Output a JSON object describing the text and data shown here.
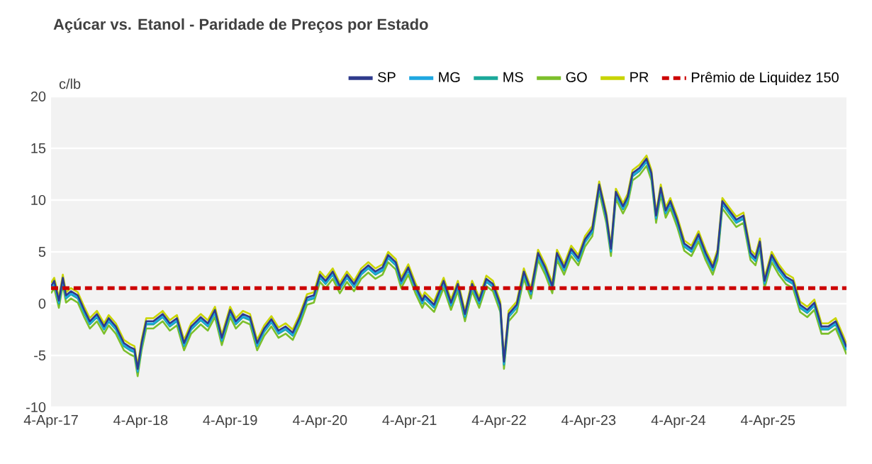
{
  "chart_data": {
    "type": "line",
    "title": "**Açúcar vs. Etanol - Paridade de Preços por Estado**",
    "ylabel": "c/lb",
    "x": [
      "2017-04-04",
      "2017-04-17",
      "2017-05-06",
      "2017-05-22",
      "2017-06-04",
      "2017-06-24",
      "2017-07-22",
      "2017-08-17",
      "2017-09-09",
      "2017-10-08",
      "2017-11-06",
      "2017-11-25",
      "2017-12-24",
      "2018-01-26",
      "2018-02-20",
      "2018-03-10",
      "2018-03-23",
      "2018-04-08",
      "2018-04-27",
      "2018-05-26",
      "2018-07-03",
      "2018-08-01",
      "2018-08-30",
      "2018-09-28",
      "2018-10-27",
      "2018-12-05",
      "2019-01-03",
      "2019-02-01",
      "2019-03-01",
      "2019-04-04",
      "2019-04-27",
      "2019-05-26",
      "2019-06-24",
      "2019-07-23",
      "2019-08-21",
      "2019-09-19",
      "2019-10-18",
      "2019-11-16",
      "2019-12-15",
      "2020-01-13",
      "2020-02-11",
      "2020-03-10",
      "2020-04-04",
      "2020-04-27",
      "2020-05-26",
      "2020-06-24",
      "2020-07-23",
      "2020-08-21",
      "2020-09-19",
      "2020-10-18",
      "2020-11-16",
      "2020-12-15",
      "2021-01-07",
      "2021-02-07",
      "2021-03-01",
      "2021-03-30",
      "2021-04-28",
      "2021-05-26",
      "2021-06-05",
      "2021-07-13",
      "2021-08-21",
      "2021-09-20",
      "2021-10-18",
      "2021-11-16",
      "2021-12-15",
      "2022-01-13",
      "2022-02-11",
      "2022-03-10",
      "2022-04-09",
      "2022-04-24",
      "2022-05-13",
      "2022-06-15",
      "2022-07-14",
      "2022-08-12",
      "2022-09-10",
      "2022-10-09",
      "2022-11-07",
      "2022-11-26",
      "2022-12-25",
      "2023-01-23",
      "2023-02-21",
      "2023-03-20",
      "2023-04-19",
      "2023-05-17",
      "2023-06-15",
      "2023-07-04",
      "2023-07-24",
      "2023-08-22",
      "2023-09-10",
      "2023-09-30",
      "2023-10-28",
      "2023-11-26",
      "2023-12-16",
      "2024-01-04",
      "2024-01-23",
      "2024-02-12",
      "2024-03-02",
      "2024-03-30",
      "2024-04-28",
      "2024-05-27",
      "2024-06-25",
      "2024-07-24",
      "2024-08-22",
      "2024-09-10",
      "2024-09-30",
      "2024-10-28",
      "2024-11-26",
      "2024-12-25",
      "2025-01-23",
      "2025-02-12",
      "2025-03-02",
      "2025-03-21",
      "2025-04-19",
      "2025-05-18",
      "2025-06-16",
      "2025-07-15",
      "2025-08-13",
      "2025-09-11",
      "2025-10-10",
      "2025-11-08",
      "2025-12-06",
      "2026-01-05",
      "2026-02-03",
      "2026-02-18"
    ],
    "series": [
      {
        "name": "SP",
        "color": "#2e3a8c",
        "values": [
          1.7,
          2.2,
          0.3,
          2.5,
          0.8,
          1.2,
          0.8,
          -0.6,
          -1.7,
          -1.0,
          -2.2,
          -1.4,
          -2.2,
          -3.8,
          -4.2,
          -4.4,
          -6.3,
          -3.8,
          -1.7,
          -1.7,
          -1.0,
          -1.9,
          -1.4,
          -3.8,
          -2.2,
          -1.3,
          -1.9,
          -0.6,
          -3.3,
          -0.6,
          -1.7,
          -1.0,
          -1.3,
          -3.8,
          -2.4,
          -1.5,
          -2.6,
          -2.2,
          -2.8,
          -1.3,
          0.6,
          0.8,
          2.8,
          2.2,
          3.1,
          1.7,
          2.8,
          1.9,
          3.1,
          3.7,
          3.1,
          3.5,
          4.7,
          4.0,
          2.2,
          3.5,
          1.7,
          0.3,
          0.8,
          -0.1,
          2.2,
          0.1,
          1.9,
          -1.0,
          1.9,
          0.3,
          2.4,
          1.9,
          -0.1,
          -5.6,
          -1.0,
          -0.1,
          3.1,
          1.2,
          4.9,
          3.5,
          1.7,
          4.9,
          3.5,
          5.3,
          4.4,
          6.2,
          7.2,
          11.5,
          8.5,
          5.3,
          10.8,
          9.4,
          10.3,
          12.6,
          13.1,
          14.0,
          12.6,
          8.5,
          11.2,
          9.0,
          9.9,
          8.1,
          5.8,
          5.3,
          6.7,
          4.9,
          3.5,
          4.9,
          9.9,
          9.0,
          8.1,
          8.5,
          4.9,
          4.4,
          6.0,
          2.2,
          4.7,
          3.5,
          2.6,
          2.2,
          -0.1,
          -0.6,
          0.1,
          -2.2,
          -2.2,
          -1.7,
          -3.3,
          -4.2
        ]
      },
      {
        "name": "MG",
        "color": "#1ea7e1",
        "values": [
          1.5,
          2.0,
          0.1,
          2.3,
          0.6,
          1.0,
          0.6,
          -0.8,
          -1.9,
          -1.2,
          -2.4,
          -1.6,
          -2.4,
          -4.0,
          -4.4,
          -4.6,
          -6.5,
          -4.0,
          -1.9,
          -1.9,
          -1.2,
          -2.1,
          -1.6,
          -4.0,
          -2.4,
          -1.5,
          -2.1,
          -0.8,
          -3.5,
          -0.8,
          -1.9,
          -1.2,
          -1.5,
          -4.0,
          -2.6,
          -1.7,
          -2.8,
          -2.4,
          -3.0,
          -1.5,
          0.4,
          0.6,
          2.6,
          2.0,
          2.9,
          1.5,
          2.6,
          1.7,
          2.9,
          3.5,
          2.9,
          3.3,
          4.5,
          3.8,
          2.0,
          3.3,
          1.5,
          0.1,
          0.6,
          -0.3,
          2.0,
          -0.1,
          1.7,
          -1.2,
          1.7,
          0.1,
          2.2,
          1.7,
          -0.3,
          -5.8,
          -1.2,
          -0.3,
          2.9,
          1.0,
          4.7,
          3.3,
          1.5,
          4.7,
          3.3,
          5.1,
          4.2,
          6.0,
          7.0,
          11.3,
          8.3,
          5.1,
          10.6,
          9.2,
          10.1,
          12.4,
          12.9,
          13.8,
          12.4,
          8.3,
          11.0,
          8.8,
          9.7,
          7.9,
          5.6,
          5.1,
          6.5,
          4.7,
          3.3,
          4.7,
          9.7,
          8.8,
          7.9,
          8.3,
          4.7,
          4.2,
          5.8,
          2.0,
          4.5,
          3.3,
          2.4,
          2.0,
          -0.3,
          -0.8,
          -0.1,
          -2.4,
          -2.4,
          -1.9,
          -3.5,
          -4.4
        ]
      },
      {
        "name": "MS",
        "color": "#1aa89a",
        "values": [
          1.4,
          1.9,
          0.0,
          2.2,
          0.5,
          0.9,
          0.5,
          -0.9,
          -2.0,
          -1.3,
          -2.5,
          -1.7,
          -2.5,
          -4.1,
          -4.5,
          -4.7,
          -6.6,
          -4.1,
          -2.0,
          -2.0,
          -1.3,
          -2.2,
          -1.7,
          -4.1,
          -2.5,
          -1.6,
          -2.2,
          -0.9,
          -3.6,
          -0.9,
          -2.0,
          -1.3,
          -1.6,
          -4.1,
          -2.7,
          -1.8,
          -2.9,
          -2.5,
          -3.1,
          -1.6,
          0.3,
          0.5,
          2.5,
          1.9,
          2.8,
          1.4,
          2.5,
          1.6,
          2.8,
          3.4,
          2.8,
          3.2,
          4.4,
          3.7,
          1.9,
          3.2,
          1.4,
          0.0,
          0.5,
          -0.4,
          1.9,
          -0.2,
          1.6,
          -1.3,
          1.6,
          0.0,
          2.1,
          1.6,
          -0.4,
          -5.9,
          -1.3,
          -0.4,
          2.8,
          0.9,
          4.6,
          3.2,
          1.4,
          4.6,
          3.2,
          5.0,
          4.1,
          5.9,
          6.9,
          11.2,
          8.2,
          5.0,
          10.5,
          9.1,
          10.0,
          12.3,
          12.8,
          13.7,
          12.3,
          8.2,
          10.9,
          8.7,
          9.6,
          7.8,
          5.5,
          5.0,
          6.4,
          4.6,
          3.2,
          4.6,
          9.6,
          8.7,
          7.8,
          8.2,
          4.6,
          4.1,
          5.7,
          1.9,
          4.4,
          3.2,
          2.3,
          1.9,
          -0.4,
          -0.9,
          -0.2,
          -2.5,
          -2.5,
          -2.0,
          -3.6,
          -4.5
        ]
      },
      {
        "name": "GO",
        "color": "#7cbf2a",
        "values": [
          1.0,
          1.5,
          -0.4,
          1.8,
          0.1,
          0.5,
          0.1,
          -1.3,
          -2.4,
          -1.7,
          -2.9,
          -2.1,
          -2.9,
          -4.5,
          -4.9,
          -5.1,
          -7.0,
          -4.5,
          -2.4,
          -2.4,
          -1.7,
          -2.6,
          -2.1,
          -4.5,
          -2.9,
          -2.0,
          -2.6,
          -1.3,
          -4.0,
          -1.3,
          -2.4,
          -1.7,
          -2.0,
          -4.5,
          -3.1,
          -2.2,
          -3.3,
          -2.9,
          -3.5,
          -2.0,
          -0.1,
          0.1,
          2.1,
          1.5,
          2.4,
          1.0,
          2.1,
          1.2,
          2.4,
          3.0,
          2.4,
          2.8,
          4.0,
          3.3,
          1.5,
          2.8,
          1.0,
          -0.4,
          0.1,
          -0.8,
          1.5,
          -0.6,
          1.2,
          -1.7,
          1.2,
          -0.4,
          1.7,
          1.2,
          -0.8,
          -6.3,
          -1.7,
          -0.8,
          2.4,
          0.5,
          4.2,
          2.8,
          1.0,
          4.2,
          2.8,
          4.6,
          3.7,
          5.5,
          6.5,
          10.8,
          7.8,
          4.6,
          10.1,
          8.7,
          9.6,
          11.9,
          12.4,
          13.3,
          11.9,
          7.8,
          10.5,
          8.3,
          9.2,
          7.4,
          5.1,
          4.6,
          6.0,
          4.2,
          2.8,
          4.2,
          9.2,
          8.3,
          7.4,
          7.8,
          4.2,
          3.7,
          5.3,
          1.5,
          4.0,
          2.8,
          1.9,
          1.5,
          -0.8,
          -1.3,
          -0.6,
          -2.9,
          -2.9,
          -2.4,
          -4.0,
          -4.9
        ]
      },
      {
        "name": "PR",
        "color": "#c8d400",
        "values": [
          2.0,
          2.5,
          0.6,
          2.8,
          1.1,
          1.5,
          1.1,
          -0.3,
          -1.4,
          -0.7,
          -1.9,
          -1.1,
          -1.9,
          -3.5,
          -3.9,
          -4.1,
          -6.0,
          -3.5,
          -1.4,
          -1.4,
          -0.7,
          -1.6,
          -1.1,
          -3.5,
          -1.9,
          -1.0,
          -1.6,
          -0.3,
          -3.0,
          -0.3,
          -1.4,
          -0.7,
          -1.0,
          -3.5,
          -2.1,
          -1.2,
          -2.3,
          -1.9,
          -2.5,
          -1.0,
          0.9,
          1.1,
          3.1,
          2.5,
          3.4,
          2.0,
          3.1,
          2.2,
          3.4,
          4.0,
          3.4,
          3.8,
          5.0,
          4.3,
          2.5,
          3.8,
          2.0,
          0.6,
          1.1,
          0.2,
          2.5,
          0.4,
          2.2,
          -0.7,
          2.2,
          0.6,
          2.7,
          2.2,
          0.2,
          -5.3,
          -0.7,
          0.2,
          3.4,
          1.5,
          5.2,
          3.8,
          2.0,
          5.2,
          3.8,
          5.6,
          4.7,
          6.5,
          7.5,
          11.8,
          8.8,
          5.6,
          11.1,
          9.7,
          10.6,
          12.9,
          13.4,
          14.3,
          12.9,
          8.8,
          11.5,
          9.3,
          10.2,
          8.4,
          6.1,
          5.6,
          7.0,
          5.2,
          3.8,
          5.2,
          10.2,
          9.3,
          8.4,
          8.8,
          5.2,
          4.7,
          6.3,
          2.5,
          5.0,
          3.8,
          2.9,
          2.5,
          0.2,
          -0.3,
          0.4,
          -1.9,
          -1.9,
          -1.4,
          -3.0,
          -3.9
        ]
      }
    ],
    "ref_lines": [
      {
        "axis": "y",
        "value": 1.5,
        "label": "Prêmio de Liquidez 150",
        "color": "#cc0000",
        "line_style": "dashed"
      }
    ],
    "xlim": [
      "2017-04-04",
      "2026-02-18"
    ],
    "xticks": [
      {
        "value": "2017-04-04",
        "label": "4-Apr-17"
      },
      {
        "value": "2018-04-04",
        "label": "4-Apr-18"
      },
      {
        "value": "2019-04-04",
        "label": "4-Apr-19"
      },
      {
        "value": "2020-04-04",
        "label": "4-Apr-20"
      },
      {
        "value": "2021-04-04",
        "label": "4-Apr-21"
      },
      {
        "value": "2022-04-04",
        "label": "4-Apr-22"
      },
      {
        "value": "2023-04-04",
        "label": "4-Apr-23"
      },
      {
        "value": "2024-04-04",
        "label": "4-Apr-24"
      },
      {
        "value": "2025-04-04",
        "label": "4-Apr-25"
      }
    ],
    "ylim": [
      -10,
      20
    ],
    "yticks": [
      -10,
      -5,
      0,
      5,
      10,
      15,
      20
    ],
    "grid": "y",
    "legend": "top right",
    "marker": "none",
    "line_style": "solid"
  }
}
